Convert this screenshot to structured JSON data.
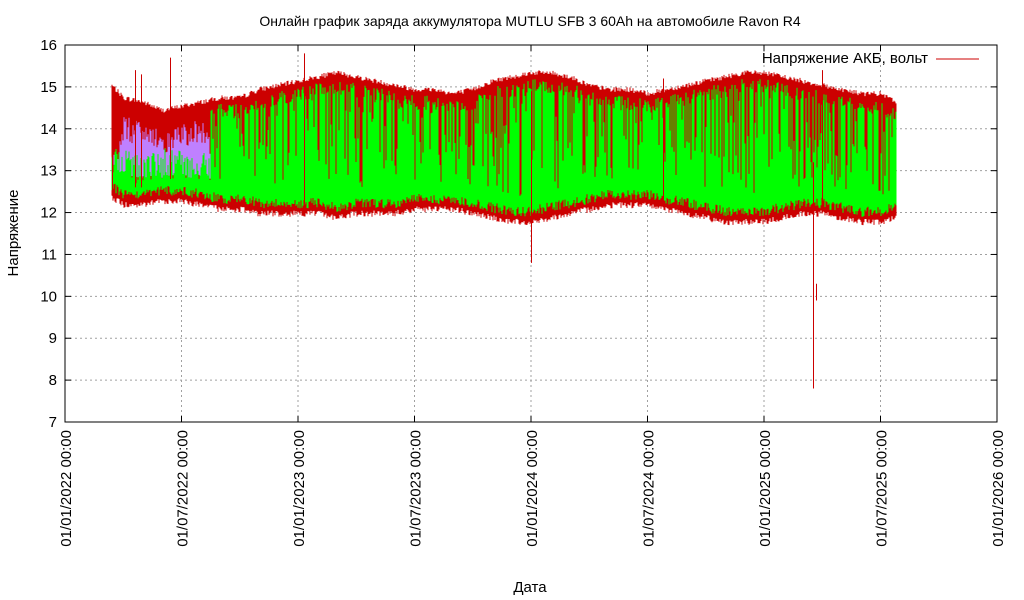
{
  "chart_data": {
    "type": "line",
    "title": "Онлайн график заряда аккумулятора MUTLU SFB 3 60Ah на автомобиле Ravon R4",
    "xlabel": "Дата",
    "ylabel": "Напряжение",
    "ylim": [
      7,
      16
    ],
    "yticks": [
      "7",
      "8",
      "9",
      "10",
      "11",
      "12",
      "13",
      "14",
      "15",
      "16"
    ],
    "xticks": [
      "01/01/2022 00:00",
      "01/07/2022 00:00",
      "01/01/2023 00:00",
      "01/07/2023 00:00",
      "01/01/2024 00:00",
      "01/07/2024 00:00",
      "01/01/2025 00:00",
      "01/07/2025 00:00",
      "01/01/2026 00:00"
    ],
    "grid": true,
    "legend": {
      "position": "top-right",
      "label": "Напряжение АКБ, вольт"
    },
    "colors": {
      "voltage": "#cc0000",
      "envelope_green": "#00ff00",
      "envelope_purple": "#bf80ff",
      "grid": "#a0a0a0"
    },
    "series": [
      {
        "name": "Напряжение АКБ, вольт",
        "envelope_x_months": [
          2.4,
          3,
          4,
          5,
          6,
          7,
          8,
          9,
          10,
          11,
          12,
          13,
          14,
          15,
          16,
          17,
          18,
          19,
          20,
          21,
          22,
          23,
          24,
          25,
          26,
          27,
          28,
          29,
          30,
          31,
          32,
          33,
          34,
          35,
          36,
          37,
          38,
          39,
          40,
          41,
          42,
          42.8
        ],
        "envelope_max": [
          14.9,
          14.6,
          14.5,
          14.3,
          14.4,
          14.5,
          14.6,
          14.6,
          14.8,
          14.9,
          15.0,
          15.1,
          15.2,
          15.1,
          15.0,
          14.9,
          14.8,
          14.8,
          14.7,
          14.8,
          15.0,
          15.1,
          15.2,
          15.2,
          15.1,
          14.9,
          14.8,
          14.8,
          14.7,
          14.8,
          14.9,
          15.0,
          15.1,
          15.2,
          15.2,
          15.1,
          15.0,
          14.9,
          14.8,
          14.7,
          14.7,
          14.5
        ],
        "envelope_min": [
          12.5,
          12.3,
          12.3,
          12.4,
          12.4,
          12.3,
          12.2,
          12.2,
          12.1,
          12.1,
          12.1,
          12.1,
          12.0,
          12.1,
          12.1,
          12.1,
          12.2,
          12.2,
          12.2,
          12.1,
          12.0,
          11.9,
          11.9,
          12.0,
          12.1,
          12.2,
          12.3,
          12.3,
          12.3,
          12.2,
          12.1,
          12.0,
          11.9,
          11.9,
          11.9,
          12.0,
          12.1,
          12.1,
          12.0,
          11.9,
          11.9,
          12.0
        ],
        "purple_x_months": [
          2.4,
          3,
          4,
          5,
          6,
          7,
          7.5
        ],
        "purple_max": [
          13.2,
          14.3,
          14.2,
          14.0,
          14.2,
          14.2,
          13.9
        ],
        "purple_min": [
          12.9,
          12.9,
          12.8,
          12.8,
          12.8,
          12.8,
          12.8
        ],
        "spikes": [
          {
            "x": 2.4,
            "low": 12.4,
            "high": 15.0
          },
          {
            "x": 3.6,
            "low": 12.6,
            "high": 15.4
          },
          {
            "x": 3.9,
            "low": 12.6,
            "high": 15.3
          },
          {
            "x": 5.4,
            "low": 12.8,
            "high": 15.7
          },
          {
            "x": 12.3,
            "low": 12.2,
            "high": 15.8
          },
          {
            "x": 24.0,
            "low": 10.8,
            "high": 14.9
          },
          {
            "x": 30.8,
            "low": 12.2,
            "high": 15.2
          },
          {
            "x": 38.5,
            "low": 7.8,
            "high": 13.2
          },
          {
            "x": 38.7,
            "low": 9.9,
            "high": 10.3
          },
          {
            "x": 39.0,
            "low": 12.0,
            "high": 15.4
          }
        ]
      }
    ]
  }
}
